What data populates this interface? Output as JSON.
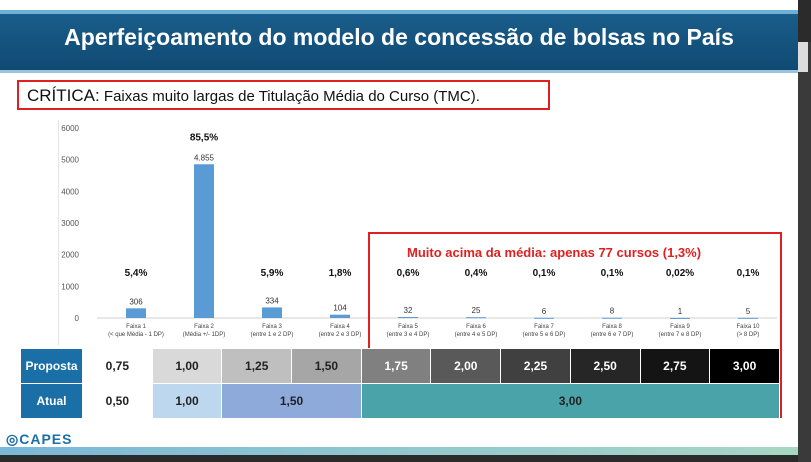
{
  "slide": {
    "title": "Aperfeiçoamento do modelo de concessão de bolsas no País",
    "critica_label": "CRÍTICA:",
    "critica_text": " Faixas muito largas de Titulação Média do Curso (TMC).",
    "highlight": "Muito acima da média: apenas 77 cursos (1,3%)",
    "logo": "CAPES"
  },
  "colors": {
    "title_bg": "#0f4a73",
    "bar": "#5b9bd5",
    "alert": "#e02020",
    "row_header": "#1a6fa6"
  },
  "chart_data": {
    "type": "bar",
    "ylim": [
      0,
      6000
    ],
    "yticks": [
      "0",
      "1000",
      "2000",
      "3000",
      "4000",
      "5000",
      "6000"
    ],
    "categories": [
      [
        "Faixa 1",
        "(< que Média - 1 DP)"
      ],
      [
        "Faixa 2",
        "(Média +/- 1DP)"
      ],
      [
        "Faixa 3",
        "(entre 1 e 2 DP)"
      ],
      [
        "Faixa 4",
        "(entre 2 e 3 DP)"
      ],
      [
        "Faixa 5",
        "(entre 3 e 4 DP)"
      ],
      [
        "Faixa 6",
        "(entre 4 e 5 DP)"
      ],
      [
        "Faixa 7",
        "(entre 5 e 6 DP)"
      ],
      [
        "Faixa 8",
        "(entre 6 e 7 DP)"
      ],
      [
        "Faixa 9",
        "(entre 7 e 8 DP)"
      ],
      [
        "Faixa 10",
        "(> 8 DP)"
      ]
    ],
    "values": [
      306,
      4855,
      334,
      104,
      32,
      25,
      6,
      8,
      1,
      5
    ],
    "value_labels": [
      "306",
      "4.855",
      "334",
      "104",
      "32",
      "25",
      "6",
      "8",
      "1",
      "5"
    ],
    "percent_labels": [
      "5,4%",
      "85,5%",
      "5,9%",
      "1,8%",
      "0,6%",
      "0,4%",
      "0,1%",
      "0,1%",
      "0,02%",
      "0,1%"
    ]
  },
  "table": {
    "proposta_label": "Proposta",
    "atual_label": "Atual",
    "proposta": [
      {
        "text": "0,75",
        "bg": "#ffffff",
        "fg": "#222222"
      },
      {
        "text": "1,00",
        "bg": "#d9d9d9",
        "fg": "#222222"
      },
      {
        "text": "1,25",
        "bg": "#bfbfbf",
        "fg": "#222222"
      },
      {
        "text": "1,50",
        "bg": "#a6a6a6",
        "fg": "#222222"
      },
      {
        "text": "1,75",
        "bg": "#808080",
        "fg": "#ffffff"
      },
      {
        "text": "2,00",
        "bg": "#595959",
        "fg": "#ffffff"
      },
      {
        "text": "2,25",
        "bg": "#404040",
        "fg": "#ffffff"
      },
      {
        "text": "2,50",
        "bg": "#262626",
        "fg": "#ffffff"
      },
      {
        "text": "2,75",
        "bg": "#141414",
        "fg": "#ffffff"
      },
      {
        "text": "3,00",
        "bg": "#000000",
        "fg": "#ffffff"
      }
    ],
    "atual": [
      {
        "text": "0,50",
        "bg": "#ffffff",
        "span": 1
      },
      {
        "text": "1,00",
        "bg": "#bcd7ee",
        "span": 1
      },
      {
        "text": "1,50",
        "bg": "#8eaadb",
        "span": 2
      },
      {
        "text": "3,00",
        "bg": "#4aa3a8",
        "span": 6
      }
    ]
  }
}
